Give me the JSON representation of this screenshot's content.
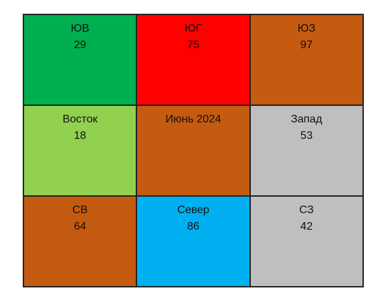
{
  "table": {
    "rows": [
      [
        {
          "label": "ЮВ",
          "value": 29,
          "color": "#00b050"
        },
        {
          "label": "ЮГ",
          "value": 75,
          "color": "#ff0000"
        },
        {
          "label": "ЮЗ",
          "value": 97,
          "color": "#c55a11"
        }
      ],
      [
        {
          "label": "Восток",
          "value": 18,
          "color": "#92d050"
        },
        {
          "label": "Июнь 2024",
          "color": "#c55a11"
        },
        {
          "label": "Запад",
          "value": 53,
          "color": "#bfbfbf"
        }
      ],
      [
        {
          "label": "СВ",
          "value": 64,
          "color": "#c55a11"
        },
        {
          "label": "Север",
          "value": 86,
          "color": "#00b0f0"
        },
        {
          "label": "СЗ",
          "value": 42,
          "color": "#bfbfbf"
        }
      ]
    ]
  }
}
